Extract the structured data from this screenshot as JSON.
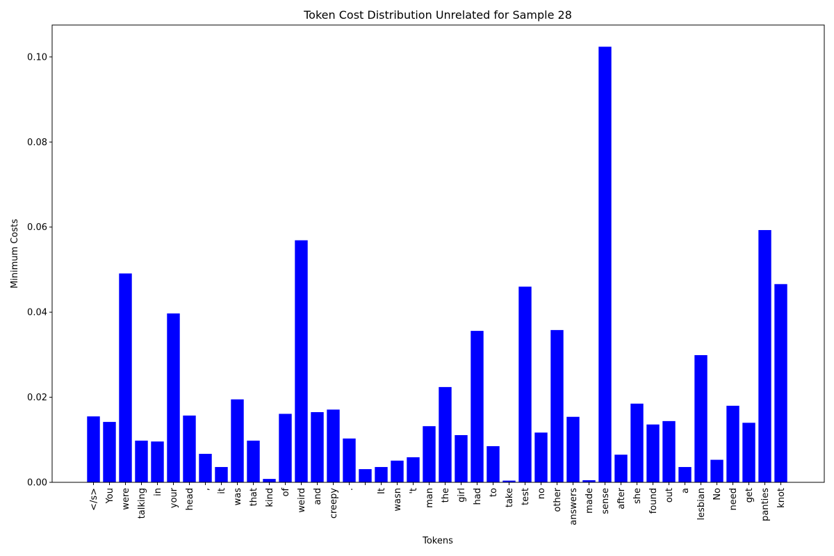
{
  "chart_data": {
    "type": "bar",
    "title": "Token Cost Distribution Unrelated for Sample 28",
    "xlabel": "Tokens",
    "ylabel": "Minimum Costs",
    "ylim": [
      0,
      0.1075
    ],
    "yticks": [
      "0.00",
      "0.02",
      "0.04",
      "0.06",
      "0.08",
      "0.10"
    ],
    "bar_color": "#0000ff",
    "grid": false,
    "categories": [
      "</s>",
      "You",
      "were",
      "talking",
      "in",
      "your",
      "head",
      ",",
      "it",
      "was",
      "that",
      "kind",
      "of",
      "weird",
      "and",
      "creepy",
      ".",
      "",
      "It",
      "wasn",
      "'t",
      "man",
      "the",
      "girl",
      "had",
      "to",
      "take",
      "test",
      "no",
      "other",
      "answers",
      "made",
      "sense",
      "after",
      "she",
      "found",
      "out",
      "a",
      "lesbian",
      "No",
      "need",
      "get",
      "panties",
      "knot"
    ],
    "values": [
      0.0155,
      0.0142,
      0.0491,
      0.0098,
      0.0096,
      0.0397,
      0.0157,
      0.0067,
      0.0036,
      0.0195,
      0.0098,
      0.0008,
      0.0161,
      0.0569,
      0.0165,
      0.0171,
      0.0103,
      0.0031,
      0.0036,
      0.0051,
      0.0059,
      0.0132,
      0.0224,
      0.0111,
      0.0356,
      0.0085,
      0.0004,
      0.046,
      0.0117,
      0.0358,
      0.0154,
      0.0005,
      0.1024,
      0.0065,
      0.0185,
      0.0136,
      0.0144,
      0.0036,
      0.0299,
      0.0053,
      0.018,
      0.014,
      0.0593,
      0.0466
    ]
  }
}
